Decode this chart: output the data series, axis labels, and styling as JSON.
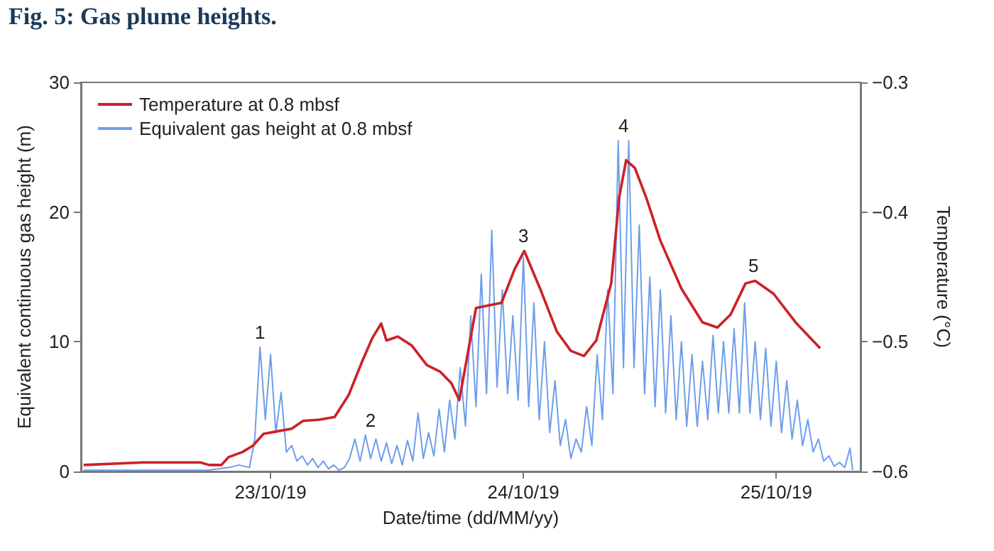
{
  "chart_data": {
    "type": "line",
    "title": "Fig. 5: Gas plume heights.",
    "xlabel": "Date/time (dd/MM/yy)",
    "ylabel": "Equivalent continuous gas height (m)",
    "y2label": "Temperature (°C)",
    "xlim": [
      "--10-22T06:00",
      "--10-25T08:00"
    ],
    "xticks": [
      {
        "value": "--10-23",
        "label": "23/10/19"
      },
      {
        "value": "--10-24",
        "label": "24/10/19"
      },
      {
        "value": "--10-25",
        "label": "25/10/19"
      }
    ],
    "ylim": [
      0,
      30
    ],
    "yticks": [
      0,
      10,
      20,
      30
    ],
    "y2lim": [
      -0.6,
      -0.3
    ],
    "y2ticks": [
      {
        "value": -0.6,
        "label": "−0.6"
      },
      {
        "value": -0.5,
        "label": "−0.5"
      },
      {
        "value": -0.4,
        "label": "−0.4"
      },
      {
        "value": -0.3,
        "label": "−0.3"
      }
    ],
    "grid": false,
    "legend": "top left",
    "marker": "none",
    "line_style": "solid",
    "annotations": [
      {
        "text": "1",
        "x": "--10-22T23:00",
        "y": 9.6
      },
      {
        "text": "2",
        "x": "--10-23T09:30",
        "y": 2.8
      },
      {
        "text": "3",
        "x": "--10-24T00:00",
        "y": 17
      },
      {
        "text": "4",
        "x": "--10-24T09:30",
        "y": 25.5
      },
      {
        "text": "5",
        "x": "--10-24T21:50",
        "y": 14.7
      }
    ],
    "series": [
      {
        "name": "Temperature at 0.8 mbsf",
        "color": "#cc2127",
        "axis": "y2",
        "x": [
          "--10-22T06:15",
          "--10-22T11:55",
          "--10-22T17:20",
          "--10-22T18:10",
          "--10-22T19:20",
          "--10-22T20:00",
          "--10-22T21:20",
          "--10-22T22:20",
          "--10-22T23:20",
          "--10-23T00:40",
          "--10-23T02:00",
          "--10-23T03:05",
          "--10-23T04:40",
          "--10-23T06:05",
          "--10-23T07:25",
          "--10-23T08:45",
          "--10-23T09:40",
          "--10-23T10:30",
          "--10-23T11:00",
          "--10-23T12:05",
          "--10-23T13:25",
          "--10-23T14:50",
          "--10-23T16:05",
          "--10-23T17:10",
          "--10-23T17:55",
          "--10-23T19:30",
          "--10-23T21:55",
          "--10-23T23:10",
          "--10-24T00:05",
          "--10-24T01:35",
          "--10-24T03:10",
          "--10-24T04:30",
          "--10-24T05:45",
          "--10-24T06:55",
          "--10-24T08:20",
          "--10-24T09:05",
          "--10-24T09:45",
          "--10-24T10:35",
          "--10-24T11:40",
          "--10-24T13:00",
          "--10-24T15:00",
          "--10-24T17:00",
          "--10-24T18:25",
          "--10-24T19:40",
          "--10-24T21:05",
          "--10-24T22:00",
          "--10-24T23:45",
          "--10-25T01:50",
          "--10-25T04:10"
        ],
        "values": [
          -0.595,
          -0.593,
          -0.593,
          -0.595,
          -0.595,
          -0.589,
          -0.585,
          -0.58,
          -0.571,
          -0.569,
          -0.567,
          -0.561,
          -0.56,
          -0.558,
          -0.541,
          -0.514,
          -0.497,
          -0.486,
          -0.499,
          -0.496,
          -0.503,
          -0.518,
          -0.523,
          -0.532,
          -0.545,
          -0.474,
          -0.47,
          -0.444,
          -0.43,
          -0.459,
          -0.492,
          -0.507,
          -0.511,
          -0.499,
          -0.455,
          -0.389,
          -0.36,
          -0.366,
          -0.389,
          -0.422,
          -0.459,
          -0.485,
          -0.489,
          -0.479,
          -0.455,
          -0.453,
          -0.463,
          -0.485,
          -0.505
        ]
      },
      {
        "name": "Equivalent gas height at 0.8 mbsf",
        "color": "#6d9eeb",
        "x": [
          "--10-22T06:15",
          "--10-22T12:00",
          "--10-22T18:00",
          "--10-22T20:00",
          "--10-22T21:00",
          "--10-22T22:00",
          "--10-22T22:30",
          "--10-22T23:00",
          "--10-22T23:30",
          "--10-23T00:00",
          "--10-23T00:30",
          "--10-23T01:00",
          "--10-23T01:30",
          "--10-23T02:00",
          "--10-23T02:30",
          "--10-23T03:00",
          "--10-23T03:30",
          "--10-23T04:00",
          "--10-23T04:30",
          "--10-23T05:00",
          "--10-23T05:30",
          "--10-23T06:00",
          "--10-23T06:30",
          "--10-23T07:00",
          "--10-23T07:30",
          "--10-23T08:00",
          "--10-23T08:30",
          "--10-23T09:00",
          "--10-23T09:30",
          "--10-23T10:00",
          "--10-23T10:30",
          "--10-23T11:00",
          "--10-23T11:30",
          "--10-23T12:00",
          "--10-23T12:30",
          "--10-23T13:00",
          "--10-23T13:30",
          "--10-23T14:00",
          "--10-23T14:30",
          "--10-23T15:00",
          "--10-23T15:30",
          "--10-23T16:00",
          "--10-23T16:30",
          "--10-23T17:00",
          "--10-23T17:30",
          "--10-23T18:00",
          "--10-23T18:30",
          "--10-23T19:00",
          "--10-23T19:30",
          "--10-23T20:00",
          "--10-23T20:30",
          "--10-23T21:00",
          "--10-23T21:30",
          "--10-23T22:00",
          "--10-23T22:30",
          "--10-23T23:00",
          "--10-23T23:30",
          "--10-24T00:00",
          "--10-24T00:30",
          "--10-24T01:00",
          "--10-24T01:30",
          "--10-24T02:00",
          "--10-24T02:30",
          "--10-24T03:00",
          "--10-24T03:30",
          "--10-24T04:00",
          "--10-24T04:30",
          "--10-24T05:00",
          "--10-24T05:30",
          "--10-24T06:00",
          "--10-24T06:30",
          "--10-24T07:00",
          "--10-24T07:30",
          "--10-24T08:00",
          "--10-24T08:30",
          "--10-24T09:00",
          "--10-24T09:30",
          "--10-24T10:00",
          "--10-24T10:30",
          "--10-24T11:00",
          "--10-24T11:30",
          "--10-24T12:00",
          "--10-24T12:30",
          "--10-24T13:00",
          "--10-24T13:30",
          "--10-24T14:00",
          "--10-24T14:30",
          "--10-24T15:00",
          "--10-24T15:30",
          "--10-24T16:00",
          "--10-24T16:30",
          "--10-24T17:00",
          "--10-24T17:30",
          "--10-24T18:00",
          "--10-24T18:30",
          "--10-24T19:00",
          "--10-24T19:30",
          "--10-24T20:00",
          "--10-24T20:30",
          "--10-24T21:00",
          "--10-24T21:30",
          "--10-24T22:00",
          "--10-24T22:30",
          "--10-24T23:00",
          "--10-24T23:30",
          "--10-25T00:00",
          "--10-25T00:30",
          "--10-25T01:00",
          "--10-25T01:30",
          "--10-25T02:00",
          "--10-25T02:30",
          "--10-25T03:00",
          "--10-25T03:30",
          "--10-25T04:00",
          "--10-25T04:30",
          "--10-25T05:00",
          "--10-25T05:30",
          "--10-25T06:00",
          "--10-25T06:30",
          "--10-25T07:00",
          "--10-25T07:15"
        ],
        "values": [
          0.1,
          0.1,
          0.1,
          0.3,
          0.5,
          0.3,
          2.5,
          9.6,
          4.0,
          9.0,
          3.0,
          6.1,
          1.5,
          2.0,
          0.8,
          1.2,
          0.5,
          1.0,
          0.3,
          0.8,
          0.2,
          0.5,
          0.1,
          0.3,
          1.0,
          2.5,
          0.8,
          2.8,
          1.0,
          2.5,
          0.8,
          2.2,
          0.6,
          2.0,
          0.5,
          2.4,
          0.8,
          4.5,
          1.0,
          3.0,
          1.2,
          4.8,
          1.5,
          5.5,
          2.5,
          8.0,
          3.5,
          12.0,
          5.0,
          15.2,
          6.0,
          18.6,
          6.5,
          14.0,
          6.0,
          12.0,
          5.5,
          16.5,
          5.0,
          13.0,
          4.0,
          10.0,
          3.0,
          7.0,
          2.0,
          4.0,
          1.0,
          2.5,
          1.5,
          5.0,
          2.0,
          9.0,
          4.0,
          14.0,
          6.0,
          25.5,
          8.0,
          25.5,
          8.0,
          19.0,
          6.0,
          15.0,
          5.0,
          14.0,
          4.5,
          12.0,
          4.0,
          10.0,
          3.5,
          9.0,
          3.5,
          8.5,
          4.0,
          10.5,
          4.5,
          10.0,
          4.5,
          11.0,
          4.5,
          13.0,
          4.5,
          10.0,
          4.0,
          9.5,
          3.5,
          8.5,
          3.0,
          7.0,
          2.5,
          5.5,
          2.0,
          4.0,
          1.5,
          2.5,
          0.8,
          1.2,
          0.4,
          0.7,
          0.3,
          1.8,
          0.1
        ]
      }
    ]
  }
}
